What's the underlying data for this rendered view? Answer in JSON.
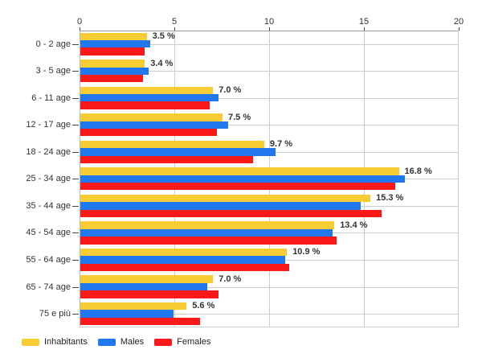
{
  "chart_data": {
    "type": "bar",
    "orientation": "horizontal",
    "title": "",
    "categories": [
      "0 - 2 age",
      "3 - 5 age",
      "6 - 11 age",
      "12 - 17 age",
      "18 - 24 age",
      "25 - 34 age",
      "35 - 44 age",
      "45 - 54 age",
      "55 - 64 age",
      "65 - 74 age",
      "75 e più"
    ],
    "series": [
      {
        "name": "Inhabitants",
        "key": "inhabitants",
        "color": "#F8CC35",
        "values": [
          3.5,
          3.4,
          7.0,
          7.5,
          9.7,
          16.8,
          15.3,
          13.4,
          10.9,
          7.0,
          5.6
        ]
      },
      {
        "name": "Males",
        "key": "males",
        "color": "#2178EE",
        "values": [
          3.7,
          3.6,
          7.3,
          7.8,
          10.3,
          17.1,
          14.8,
          13.3,
          10.8,
          6.7,
          4.9
        ]
      },
      {
        "name": "Females",
        "key": "females",
        "color": "#F91919",
        "values": [
          3.4,
          3.3,
          6.8,
          7.2,
          9.1,
          16.6,
          15.9,
          13.5,
          11.0,
          7.3,
          6.3
        ]
      }
    ],
    "data_labels": [
      "3.5 %",
      "3.4 %",
      "7.0 %",
      "7.5 %",
      "9.7 %",
      "16.8 %",
      "15.3 %",
      "13.4 %",
      "10.9 %",
      "7.0 %",
      "5.6 %"
    ],
    "data_labels_series": "Inhabitants",
    "x_axis": {
      "position": "top",
      "min": 0,
      "max": 20,
      "ticks": [
        "0",
        "5",
        "10",
        "15",
        "20"
      ]
    },
    "grid": true,
    "legend": {
      "position": "bottom-left",
      "items": [
        "Inhabitants",
        "Males",
        "Females"
      ]
    },
    "colors": {
      "grid": "#cdcdcd",
      "axis": "#9a9a9a",
      "text": "#333333",
      "background": "#ffffff"
    }
  }
}
